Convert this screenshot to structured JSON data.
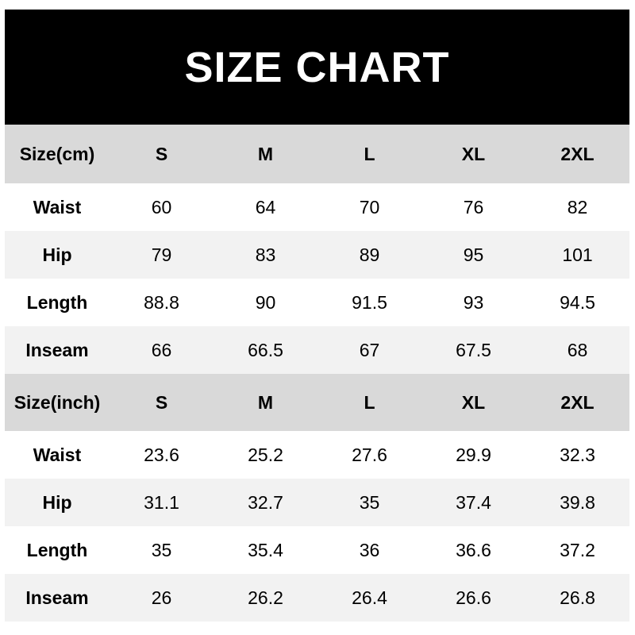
{
  "title": "SIZE CHART",
  "columns": [
    "S",
    "M",
    "L",
    "XL",
    "2XL"
  ],
  "tables": [
    {
      "header": "Size(cm)",
      "rows": [
        {
          "label": "Waist",
          "values": [
            "60",
            "64",
            "70",
            "76",
            "82"
          ]
        },
        {
          "label": "Hip",
          "values": [
            "79",
            "83",
            "89",
            "95",
            "101"
          ]
        },
        {
          "label": "Length",
          "values": [
            "88.8",
            "90",
            "91.5",
            "93",
            "94.5"
          ]
        },
        {
          "label": "Inseam",
          "values": [
            "66",
            "66.5",
            "67",
            "67.5",
            "68"
          ]
        }
      ]
    },
    {
      "header": "Size(inch)",
      "rows": [
        {
          "label": "Waist",
          "values": [
            "23.6",
            "25.2",
            "27.6",
            "29.9",
            "32.3"
          ]
        },
        {
          "label": "Hip",
          "values": [
            "31.1",
            "32.7",
            "35",
            "37.4",
            "39.8"
          ]
        },
        {
          "label": "Length",
          "values": [
            "35",
            "35.4",
            "36",
            "36.6",
            "37.2"
          ]
        },
        {
          "label": "Inseam",
          "values": [
            "26",
            "26.2",
            "26.4",
            "26.6",
            "26.8"
          ]
        }
      ]
    }
  ],
  "colors": {
    "title_bg": "#000000",
    "header_bg": "#d9d9d9",
    "alt_row_bg": "#f2f2f2"
  }
}
